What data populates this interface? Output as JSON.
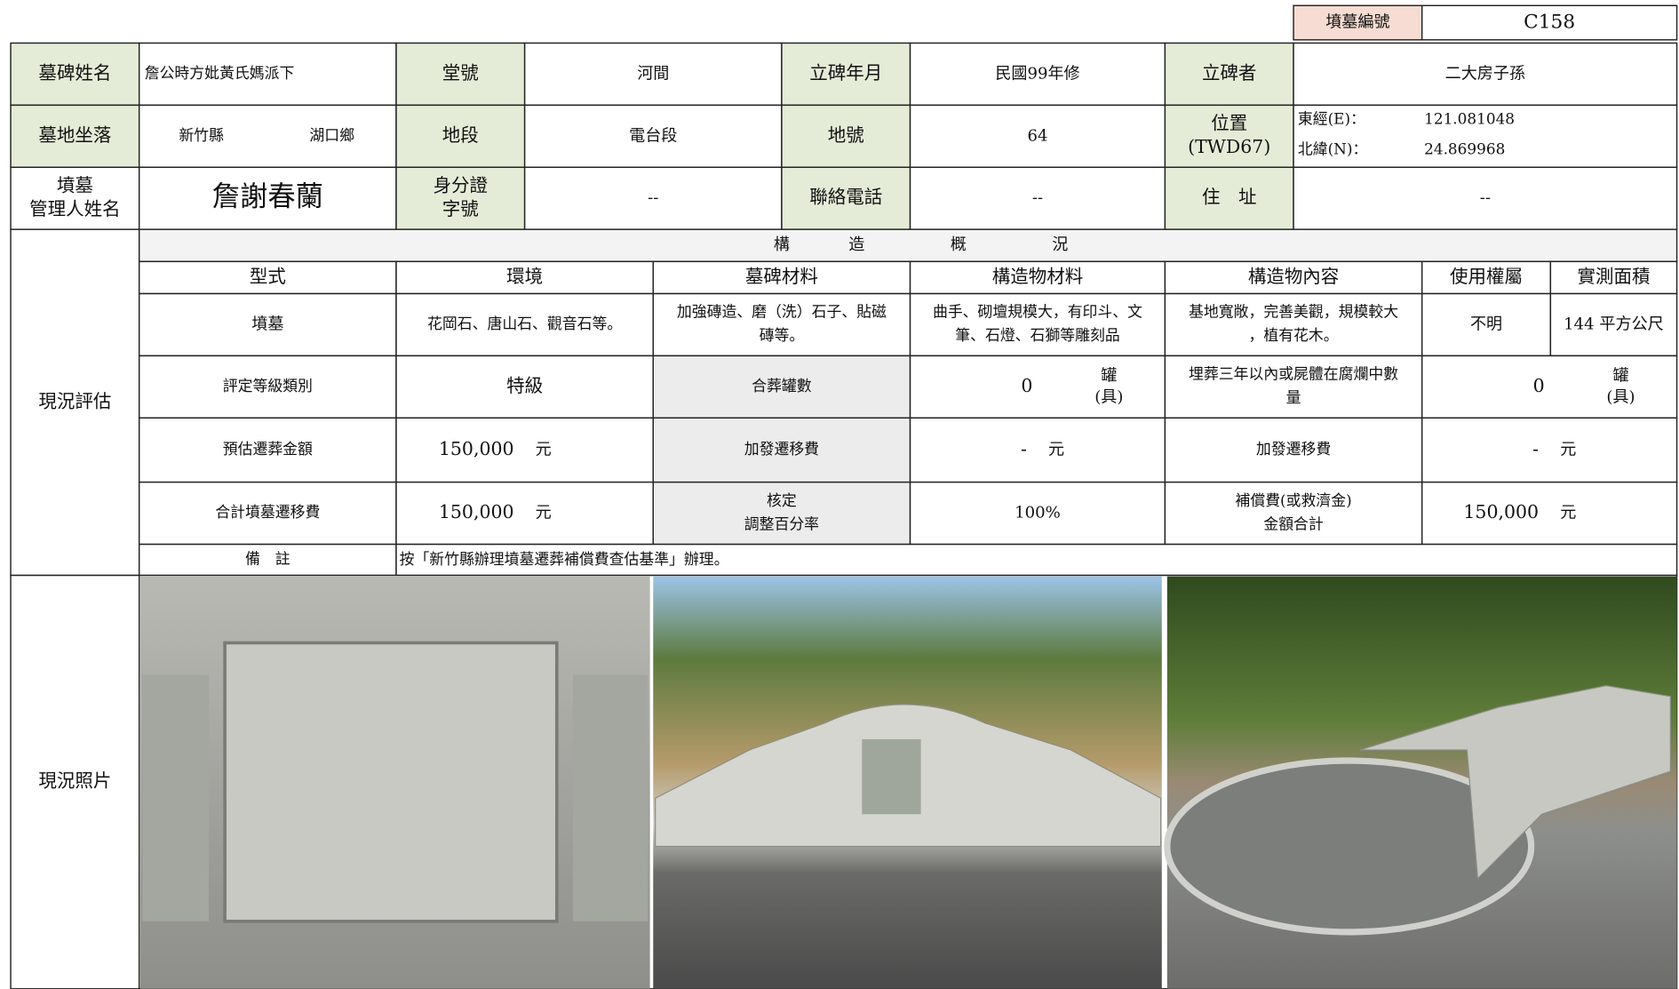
{
  "header": {
    "code_label": "墳墓編號",
    "code": "C158"
  },
  "basic": {
    "tombstone_name_label": "墓碑姓名",
    "tombstone_name": "詹公時方妣黃氏媽派下",
    "hall_label": "堂號",
    "hall": "河間",
    "date_label": "立碑年月",
    "date": "民國99年修",
    "erector_label": "立碑者",
    "erector": "二大房子孫",
    "location_label": "墓地坐落",
    "county": "新竹縣",
    "township": "湖口鄉",
    "section_label": "地段",
    "section": "電台段",
    "lot_label": "地號",
    "lot": "64",
    "position_label": [
      "位置",
      "(TWD67)"
    ],
    "lon_label": "東經(E)：",
    "lon": "121.081048",
    "lat_label": "北緯(N)：",
    "lat": "24.869968",
    "manager_label": [
      "墳墓",
      "管理人姓名"
    ],
    "manager": "詹謝春蘭",
    "id_label": [
      "身分證",
      "字號"
    ],
    "id": "--",
    "phone_label": "聯絡電話",
    "phone": "--",
    "address_label": "住　址",
    "address": "--"
  },
  "assessment": {
    "label": "現況評估",
    "structure_title": [
      "構",
      "造",
      "概",
      "況"
    ],
    "columns": [
      "型式",
      "環境",
      "墓碑材料",
      "構造物材料",
      "構造物內容",
      "使用權屬",
      "實測面積"
    ],
    "row": [
      [
        "墳墓"
      ],
      [
        "花岡石、唐山石、觀音石等。"
      ],
      [
        "加強磚造、磨（洗）石子、貼磁",
        "磚等。"
      ],
      [
        "曲手、砌壇規模大，有印斗、文",
        "筆、石燈、石獅等雕刻品"
      ],
      [
        "基地寬敞，完善美觀，規模較大",
        "，植有花木。"
      ],
      [
        "不明"
      ],
      [
        "144 平方公尺"
      ]
    ],
    "grade_label": "評定等級類別",
    "grade": "特級",
    "jars_label": "合葬罐數",
    "jars": "0",
    "jars_unit": [
      "罐",
      "(具)"
    ],
    "buried_label": [
      "埋葬三年以內或屍體在腐爛中數",
      "量"
    ],
    "buried": "0",
    "buried_unit": [
      "罐",
      "(具)"
    ],
    "estimate_label": "預估遷葬金額",
    "estimate": "150,000",
    "estimate_unit": "元",
    "extra_label": "加發遷移費",
    "extra": "-",
    "extra_unit": "元",
    "extra2_label": "加發遷移費",
    "extra2": "-",
    "extra2_unit": "元",
    "total_label": "合計墳墓遷移費",
    "total": "150,000",
    "total_unit": "元",
    "rate_label": [
      "核定",
      "調整百分率"
    ],
    "rate": "100%",
    "comp_label": [
      "補償費(或救濟金)",
      "金額合計"
    ],
    "comp": "150,000",
    "comp_unit": "元",
    "remark_label": "備　註",
    "remark": "按「新竹縣辦理墳墓遷葬補償費查估基準」辦理。"
  },
  "photos": {
    "label": "現況照片"
  }
}
